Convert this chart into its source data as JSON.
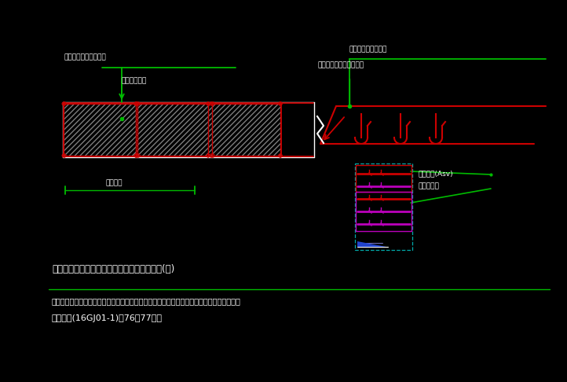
{
  "bg_color": "#000000",
  "white": "#ffffff",
  "green": "#00bb00",
  "red": "#cc0000",
  "cyan": "#00aaaa",
  "magenta": "#bb00bb",
  "blue": "#2244cc",
  "gray": "#999999",
  "label_existing_rebar": "纵向钢筋、箍筋及拉筋",
  "label_design_range": "详见设计标注",
  "label_dimension": "锚固范围",
  "label_top_horiz": "墙体水平分布筋锚部",
  "label_top_vert": "弯折后也可对边垂直锚筋",
  "label_asv": "位移圆钢(Asv)",
  "label_asv2": "墙腹筋钢筋",
  "title": "构造边缘构件算力墙水平分布筋代替箍筋做法(一)",
  "note1": "说明：本图仅适用于设计边缘构件墙水平筋代替箍筋量配筋制度，水平筋与纵壮墙腹钢筋布置",
  "note2": "规律详见(16GJ01-1)第76，77页。"
}
